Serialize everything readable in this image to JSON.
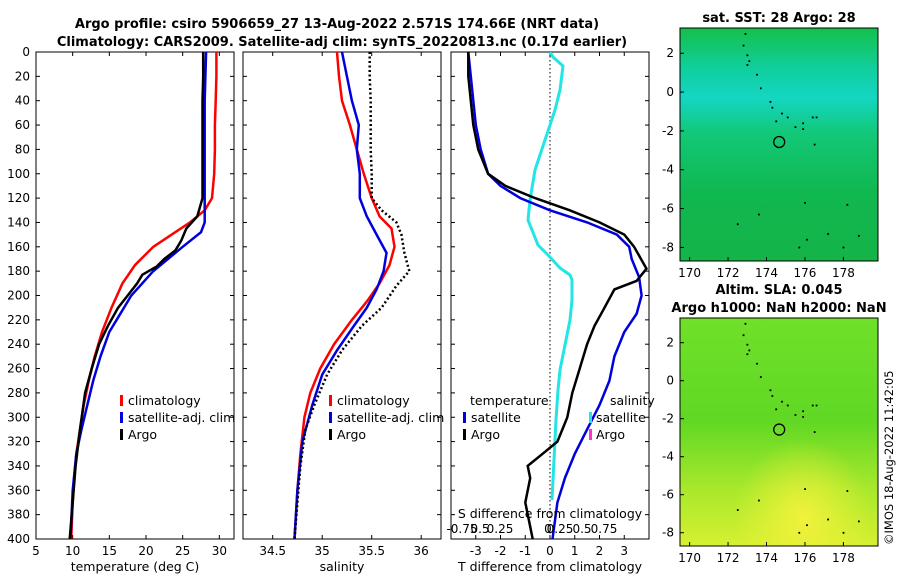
{
  "header": {
    "line1": "Argo profile: csiro 5906659_27 13-Aug-2022 2.571S 174.66E (NRT data)",
    "line2": "Climatology: CARS2009. Satellite-adj clim: synTS_20220813.nc (0.17d earlier)"
  },
  "copyright": "©IMOS 18-Aug-2022 11:42:05",
  "colors": {
    "climatology": "#ff0000",
    "satellite": "#0000dd",
    "argo": "#000000",
    "salinity_sat": "#22e5e5",
    "salinity_argo": "#ff33cc"
  },
  "chart_data": [
    {
      "id": "temperature",
      "type": "line",
      "xlabel": "temperature (deg C)",
      "xlim": [
        5,
        32
      ],
      "ylim": [
        0,
        400
      ],
      "y_reversed": true,
      "xticks": [
        5,
        10,
        15,
        20,
        25,
        30
      ],
      "yticks": [
        0,
        20,
        40,
        60,
        80,
        100,
        120,
        140,
        160,
        180,
        200,
        220,
        240,
        260,
        280,
        300,
        320,
        340,
        360,
        380,
        400
      ],
      "legend": [
        "climatology",
        "satellite-adj. clim",
        "Argo"
      ],
      "series": [
        {
          "name": "climatology",
          "color": "#ff0000",
          "x": [
            29.6,
            29.6,
            29.5,
            29.4,
            29.4,
            29.3,
            29.0,
            28.0,
            26.0,
            23.5,
            21.0,
            18.5,
            16.8,
            15.3,
            14.0,
            13.0,
            12.2,
            11.5,
            11.0,
            10.5,
            10.2,
            10.0,
            9.8
          ],
          "y": [
            0,
            20,
            40,
            60,
            80,
            100,
            120,
            130,
            140,
            150,
            160,
            175,
            190,
            210,
            230,
            250,
            270,
            290,
            310,
            330,
            350,
            370,
            400
          ]
        },
        {
          "name": "satellite-adj. clim",
          "color": "#0000dd",
          "x": [
            28.2,
            28.1,
            28.0,
            28.0,
            28.0,
            28.0,
            28.0,
            28.0,
            27.5,
            25.0,
            21.0,
            18.0,
            16.5,
            15.0,
            13.8,
            12.8,
            12.0,
            11.2,
            10.5,
            10.0,
            9.7
          ],
          "y": [
            0,
            20,
            40,
            60,
            80,
            100,
            120,
            140,
            148,
            160,
            180,
            200,
            215,
            230,
            250,
            270,
            290,
            310,
            330,
            360,
            400
          ]
        },
        {
          "name": "Argo",
          "color": "#000000",
          "x": [
            27.8,
            27.8,
            27.7,
            27.7,
            27.7,
            27.7,
            27.7,
            27.0,
            25.5,
            24.8,
            24.0,
            22.5,
            21.5,
            19.5,
            18.8,
            17.5,
            16.2,
            14.8,
            13.6,
            12.6,
            11.7,
            11.0,
            10.4,
            10.0,
            9.6
          ],
          "y": [
            0,
            20,
            40,
            60,
            80,
            100,
            120,
            135,
            145,
            155,
            163,
            170,
            176,
            183,
            190,
            200,
            210,
            225,
            240,
            260,
            280,
            310,
            340,
            370,
            400
          ]
        }
      ]
    },
    {
      "id": "salinity",
      "type": "line",
      "xlabel": "salinity",
      "xlim": [
        34.2,
        36.2
      ],
      "ylim": [
        0,
        400
      ],
      "y_reversed": true,
      "xticks": [
        34.5,
        35,
        35.5,
        36
      ],
      "legend": [
        "climatology",
        "satellite-adj. clim",
        "Argo"
      ],
      "series": [
        {
          "name": "climatology",
          "color": "#ff0000",
          "x": [
            35.15,
            35.17,
            35.2,
            35.28,
            35.35,
            35.42,
            35.5,
            35.58,
            35.7,
            35.73,
            35.68,
            35.58,
            35.45,
            35.3,
            35.12,
            34.98,
            34.88,
            34.82,
            34.78,
            34.75,
            34.72
          ],
          "y": [
            0,
            20,
            40,
            60,
            80,
            100,
            120,
            135,
            145,
            160,
            175,
            190,
            205,
            220,
            240,
            260,
            280,
            300,
            330,
            360,
            400
          ]
        },
        {
          "name": "satellite-adj. clim",
          "color": "#0000dd",
          "x": [
            35.2,
            35.25,
            35.3,
            35.37,
            35.35,
            35.38,
            35.38,
            35.45,
            35.55,
            35.65,
            35.62,
            35.55,
            35.45,
            35.32,
            35.15,
            35.0,
            34.9,
            34.8,
            34.75,
            34.72
          ],
          "y": [
            0,
            20,
            40,
            60,
            80,
            100,
            120,
            135,
            150,
            165,
            180,
            195,
            210,
            225,
            245,
            265,
            290,
            320,
            360,
            400
          ]
        },
        {
          "name": "Argo",
          "color": "#000000",
          "x": [
            35.48,
            35.48,
            35.49,
            35.49,
            35.49,
            35.5,
            35.5,
            35.6,
            35.75,
            35.8,
            35.83,
            35.88,
            35.75,
            35.6,
            35.4,
            35.2,
            35.05,
            34.92,
            34.83,
            34.78,
            34.75,
            34.72
          ],
          "y": [
            0,
            20,
            40,
            60,
            80,
            100,
            120,
            130,
            140,
            150,
            165,
            180,
            192,
            210,
            225,
            245,
            265,
            290,
            310,
            340,
            370,
            400
          ]
        }
      ]
    },
    {
      "id": "difference",
      "type": "line",
      "xlabel": "T difference from climatology",
      "xlabel_top": "S difference from climatology",
      "xlim": [
        -4,
        4
      ],
      "ylim": [
        0,
        400
      ],
      "y_reversed": true,
      "xticks": [
        -3,
        -2,
        -1,
        0,
        1,
        2,
        3
      ],
      "top_ticks": [
        "-0.75",
        "0.5",
        "0.25",
        "0",
        "0.25",
        "0.5",
        "0.75"
      ],
      "legend_temperature_title": "temperature",
      "legend_salinity_title": "salinity",
      "legend": [
        "satellite",
        "Argo",
        "satellite",
        "Argo"
      ],
      "series": [
        {
          "name": "temperature satellite",
          "color": "#0000dd",
          "x": [
            -3.3,
            -3.2,
            -3.1,
            -3.0,
            -2.8,
            -2.5,
            -2.0,
            -1.2,
            0.0,
            1.5,
            2.7,
            3.2,
            3.3,
            3.6,
            3.7,
            3.5,
            3.0,
            2.6,
            2.4,
            2.0,
            1.5,
            1.0,
            0.6,
            0.3,
            0.1
          ],
          "y": [
            0,
            20,
            40,
            60,
            80,
            100,
            110,
            120,
            130,
            140,
            150,
            160,
            170,
            185,
            200,
            215,
            230,
            250,
            270,
            290,
            310,
            330,
            350,
            370,
            400
          ]
        },
        {
          "name": "temperature Argo",
          "color": "#000000",
          "x": [
            -3.3,
            -3.3,
            -3.2,
            -3.1,
            -2.9,
            -2.5,
            -1.8,
            -0.6,
            0.8,
            2.0,
            3.0,
            3.4,
            3.9,
            3.5,
            2.6,
            2.2,
            1.8,
            1.5,
            1.2,
            0.9,
            0.7,
            0.5,
            0.3,
            -0.3,
            -0.9,
            -0.8,
            -1.0,
            -0.7
          ],
          "y": [
            0,
            20,
            40,
            60,
            80,
            100,
            110,
            120,
            130,
            140,
            150,
            160,
            178,
            188,
            195,
            210,
            225,
            240,
            260,
            280,
            300,
            310,
            320,
            330,
            340,
            350,
            370,
            400
          ]
        }
      ]
    },
    {
      "id": "sst_map",
      "type": "heatmap",
      "title": "sat. SST: 28 Argo: 28",
      "xticks": [
        170,
        172,
        174,
        176,
        178
      ],
      "yticks": [
        2,
        0,
        -2,
        -4,
        -6,
        -8
      ],
      "xlim": [
        169.5,
        179.8
      ],
      "ylim": [
        -8.7,
        3.3
      ],
      "profile_location": {
        "lon": 174.66,
        "lat": -2.571
      }
    },
    {
      "id": "sla_map",
      "type": "heatmap",
      "title_line1": "Altim. SLA: 0.045",
      "title_line2": "Argo h1000: NaN h2000: NaN",
      "xticks": [
        170,
        172,
        174,
        176,
        178
      ],
      "yticks": [
        2,
        0,
        -2,
        -4,
        -6,
        -8
      ],
      "xlim": [
        169.5,
        179.8
      ],
      "ylim": [
        -8.7,
        3.3
      ],
      "profile_location": {
        "lon": 174.66,
        "lat": -2.571
      }
    }
  ]
}
